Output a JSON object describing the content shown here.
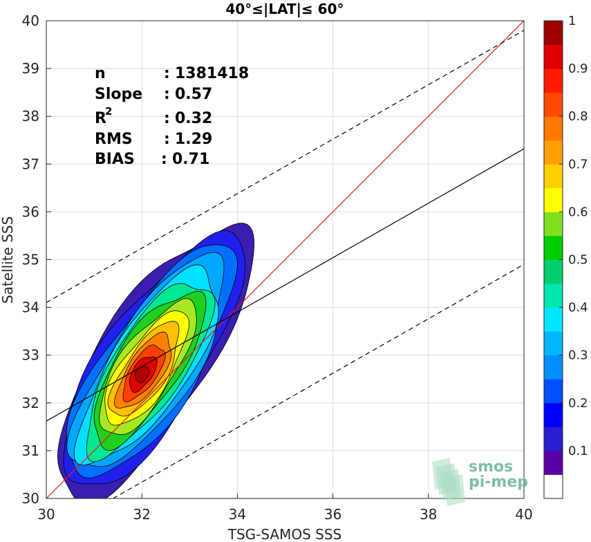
{
  "chart_data": {
    "type": "contour",
    "title": "40°≤|LAT|≤ 60°",
    "xlabel": "TSG-SAMOS SSS",
    "ylabel": "Satellite SSS",
    "xlim": [
      30,
      40
    ],
    "ylim": [
      30,
      40
    ],
    "xticks": [
      "30",
      "32",
      "34",
      "36",
      "38",
      "40"
    ],
    "yticks": [
      "30",
      "31",
      "32",
      "33",
      "34",
      "35",
      "36",
      "37",
      "38",
      "39",
      "40"
    ],
    "grid": true,
    "stats": [
      {
        "label": "n",
        "sep": ":",
        "value": "1381418"
      },
      {
        "label": "Slope",
        "sep": ":",
        "value": "0.57"
      },
      {
        "label": "R",
        "sup": "2",
        "sep": ":",
        "value": "0.32"
      },
      {
        "label": "RMS",
        "sep": ":",
        "value": "1.29"
      },
      {
        "label": "BIAS",
        "sep": ":",
        "value": "0.71"
      }
    ],
    "lines": {
      "identity": {
        "x": [
          30,
          40
        ],
        "y": [
          30,
          40
        ],
        "color": "#e31a1c"
      },
      "fit": {
        "x": [
          30,
          40
        ],
        "y": [
          31.62,
          37.32
        ],
        "color": "#000000"
      },
      "upper_bound": {
        "x": [
          30,
          40
        ],
        "y": [
          34.1,
          39.8
        ],
        "color": "#000000",
        "style": "dashed"
      },
      "lower_bound": {
        "x": [
          31.4,
          40
        ],
        "y": [
          30.0,
          34.9
        ],
        "color": "#000000",
        "style": "dashed"
      }
    },
    "density_peak": {
      "x": 32.0,
      "y": 32.6
    },
    "contour_levels": [
      0.05,
      0.1,
      0.2,
      0.3,
      0.4,
      0.5,
      0.6,
      0.7,
      0.8,
      0.9,
      1.0
    ],
    "colorbar": {
      "ticks": [
        "0.1",
        "0.2",
        "0.3",
        "0.4",
        "0.5",
        "0.6",
        "0.7",
        "0.8",
        "0.9",
        "1"
      ],
      "colors": [
        "#ffffff",
        "#5a00a6",
        "#2a1ecf",
        "#0000ff",
        "#0050ff",
        "#0090ff",
        "#00b6ff",
        "#00e8ff",
        "#00e8b0",
        "#00d070",
        "#00cc00",
        "#80e020",
        "#ffff00",
        "#ffd000",
        "#ffa000",
        "#ff7800",
        "#ff4a00",
        "#ff1a00",
        "#e00000",
        "#a00000"
      ]
    },
    "contour_colors": [
      "#3a1eb0",
      "#2020ee",
      "#0070ff",
      "#00a8ff",
      "#00e0ff",
      "#00e890",
      "#20d020",
      "#a8e820",
      "#ffff00",
      "#ffc000",
      "#ff8000",
      "#ff4000",
      "#e00000",
      "#b00000"
    ]
  },
  "logo": {
    "line1": "smos",
    "line2": "pi-mep"
  }
}
